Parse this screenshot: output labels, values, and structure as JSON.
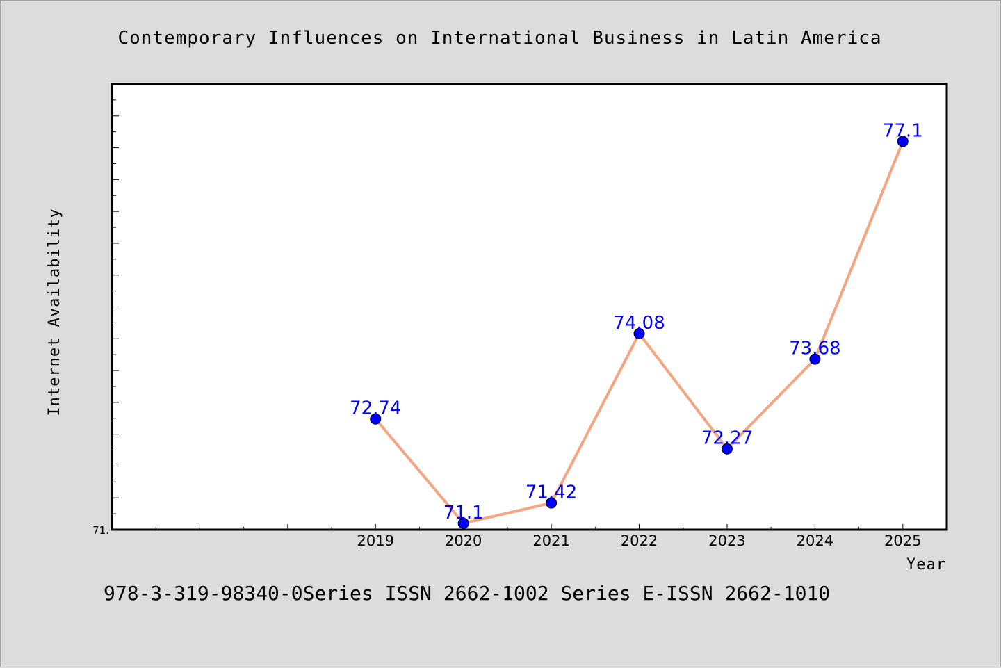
{
  "chart_data": {
    "type": "line",
    "title": "Contemporary Influences on International Business in Latin America",
    "xlabel": "Year",
    "ylabel": "Internet Availability",
    "categories": [
      "2019",
      "2020",
      "2021",
      "2022",
      "2023",
      "2024",
      "2025"
    ],
    "values": [
      72.74,
      71.1,
      71.42,
      74.08,
      72.27,
      73.68,
      77.1
    ],
    "value_labels": [
      "72.74",
      "71.1",
      "71.42",
      "74.08",
      "72.27",
      "73.68",
      "77.1"
    ],
    "x_ticks": [
      "2019",
      "2020",
      "2021",
      "2022",
      "2023",
      "2024",
      "2025"
    ],
    "x_range": [
      2016,
      2025.5
    ],
    "ylim": [
      71,
      78
    ],
    "y_tick_labels": [
      "71."
    ],
    "grid": false,
    "legend": "none",
    "colors": {
      "line": "#f4a582",
      "marker": "#0000ff",
      "label": "#0000ff",
      "background": "#dcdcdc",
      "plot_background": "#ffffff"
    }
  },
  "footer": {
    "text": "978-3-319-98340-0Series ISSN 2662-1002 Series E-ISSN 2662-1010"
  }
}
